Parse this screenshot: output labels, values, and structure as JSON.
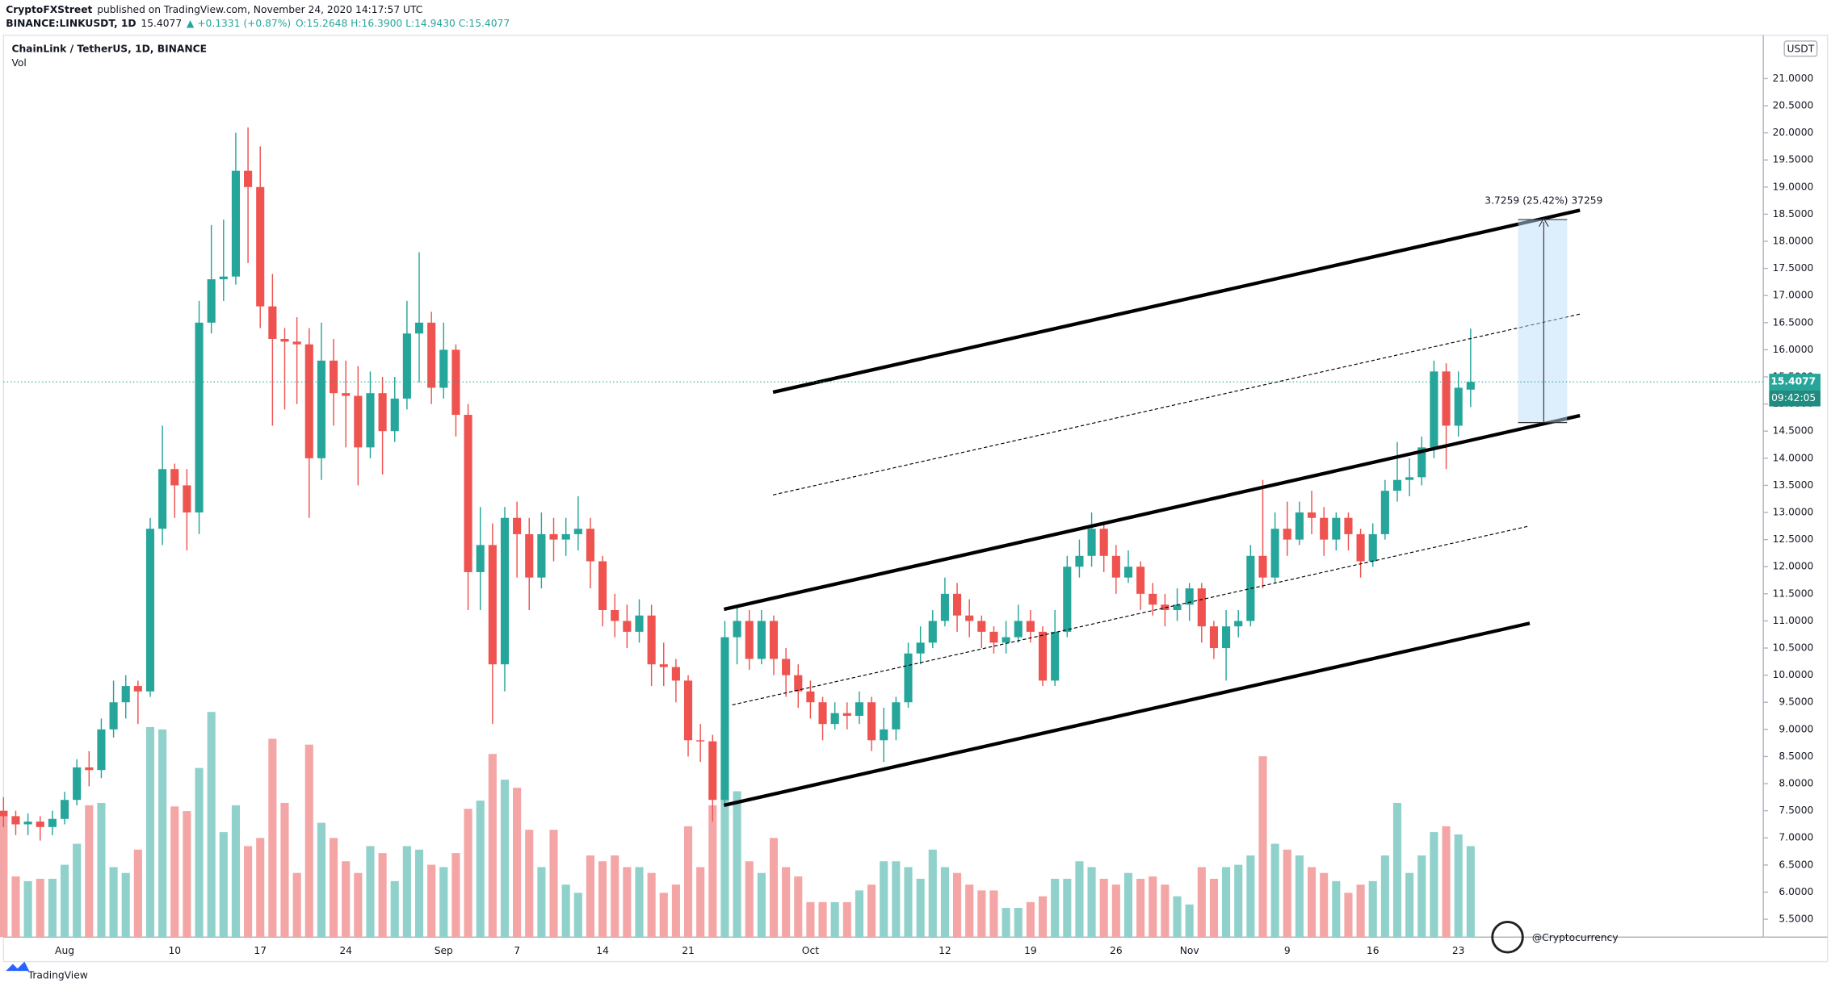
{
  "header": {
    "author": "CryptoFXStreet",
    "published": "published on TradingView.com, November 24, 2020 14:17:57 UTC",
    "symbol": "BINANCE:LINKUSDT, 1D",
    "last": "15.4077",
    "change": "▲ +0.1331 (+0.87%)",
    "ohlc": "O:15.2648 H:16.3900 L:14.9430 C:15.4077"
  },
  "chart_data": {
    "type": "candlestick",
    "title": "ChainLink / TetherUS, 1D, BINANCE",
    "volume_label": "Vol",
    "up_color": "#26a69a",
    "down_color": "#ef5350",
    "volume_up_color": "#91d1cb",
    "volume_down_color": "#f4a6a6",
    "categories": [
      null,
      null,
      null,
      null,
      null,
      "Aug",
      null,
      null,
      null,
      null,
      null,
      null,
      null,
      null,
      "10",
      null,
      null,
      null,
      null,
      null,
      null,
      "17",
      null,
      null,
      null,
      null,
      null,
      null,
      "24",
      null,
      null,
      null,
      null,
      null,
      null,
      null,
      "Sep",
      null,
      null,
      null,
      null,
      null,
      "7",
      null,
      null,
      null,
      null,
      null,
      null,
      "14",
      null,
      null,
      null,
      null,
      null,
      null,
      "21",
      null,
      null,
      null,
      null,
      null,
      null,
      null,
      null,
      null,
      "Oct",
      null,
      null,
      null,
      null,
      null,
      null,
      null,
      null,
      null,
      null,
      "12",
      null,
      null,
      null,
      null,
      null,
      null,
      "19",
      null,
      null,
      null,
      null,
      null,
      null,
      "26",
      null,
      null,
      null,
      null,
      null,
      "Nov",
      null,
      null,
      null,
      null,
      null,
      null,
      null,
      "9",
      null,
      null,
      null,
      null,
      null,
      null,
      "16",
      null,
      null,
      null,
      null,
      null,
      null,
      "23",
      null
    ],
    "open": [
      7.5,
      7.4,
      7.25,
      7.3,
      7.2,
      7.35,
      7.7,
      8.3,
      8.25,
      9.0,
      9.5,
      9.8,
      9.7,
      12.7,
      13.8,
      13.5,
      13.0,
      16.5,
      17.3,
      17.35,
      19.3,
      19.0,
      16.8,
      16.2,
      16.15,
      16.1,
      14.0,
      15.8,
      15.2,
      15.15,
      14.2,
      15.2,
      14.5,
      15.1,
      16.3,
      16.5,
      15.3,
      16.0,
      14.8,
      11.9,
      12.4,
      10.2,
      12.9,
      12.6,
      11.8,
      12.6,
      12.5,
      12.6,
      12.7,
      12.1,
      11.2,
      11.0,
      10.8,
      11.1,
      10.2,
      10.15,
      9.9,
      8.8,
      8.78,
      7.7,
      10.7,
      11.0,
      10.3,
      11.0,
      10.3,
      10.0,
      9.7,
      9.5,
      9.1,
      9.3,
      9.25,
      9.5,
      8.8,
      9.0,
      9.5,
      10.4,
      10.6,
      11.0,
      11.5,
      11.1,
      11.0,
      10.8,
      10.6,
      10.7,
      11.0,
      10.8,
      9.9,
      10.8,
      12.0,
      12.2,
      12.7,
      12.2,
      11.8,
      12.0,
      11.5,
      11.3,
      11.2,
      11.3,
      11.6,
      10.9,
      10.5,
      10.9,
      11.0,
      12.2,
      11.8,
      12.7,
      12.5,
      13.0,
      12.9,
      12.5,
      12.9,
      12.6,
      12.1,
      12.6,
      13.4,
      13.6,
      13.65,
      14.2,
      15.6,
      14.6,
      15.2648
    ],
    "high": [
      7.75,
      7.5,
      7.45,
      7.4,
      7.5,
      7.85,
      8.45,
      8.6,
      9.2,
      9.9,
      10.0,
      9.9,
      12.9,
      14.6,
      13.9,
      13.8,
      16.9,
      18.3,
      18.4,
      20.0,
      20.1,
      19.75,
      17.4,
      16.4,
      16.6,
      16.4,
      16.5,
      16.2,
      15.8,
      15.7,
      15.6,
      15.5,
      15.5,
      16.9,
      17.8,
      16.7,
      16.5,
      16.1,
      15.0,
      13.1,
      12.8,
      13.1,
      13.2,
      12.9,
      13.0,
      12.9,
      12.9,
      13.3,
      12.9,
      12.2,
      11.5,
      11.3,
      11.4,
      11.3,
      10.6,
      10.3,
      10.0,
      9.1,
      8.9,
      11.0,
      11.25,
      11.2,
      11.2,
      11.1,
      10.5,
      10.2,
      9.9,
      9.6,
      9.5,
      9.5,
      9.7,
      9.6,
      9.4,
      9.6,
      10.6,
      10.9,
      11.2,
      11.8,
      11.7,
      11.4,
      11.1,
      10.9,
      11.0,
      11.3,
      11.2,
      10.9,
      11.2,
      12.2,
      12.5,
      13.0,
      12.8,
      12.4,
      12.3,
      12.1,
      11.7,
      11.5,
      11.6,
      11.7,
      11.7,
      11.0,
      11.2,
      11.2,
      12.4,
      13.6,
      13.0,
      13.2,
      13.2,
      13.4,
      13.1,
      13.0,
      13.0,
      12.7,
      12.8,
      13.6,
      14.3,
      14.0,
      14.4,
      15.8,
      15.75,
      15.6,
      16.39
    ],
    "low": [
      7.2,
      7.05,
      7.05,
      6.95,
      7.05,
      7.25,
      7.6,
      7.95,
      8.1,
      8.85,
      9.2,
      9.1,
      9.6,
      12.4,
      12.9,
      12.3,
      12.6,
      16.3,
      16.9,
      17.2,
      17.6,
      16.4,
      14.6,
      14.9,
      15.0,
      12.9,
      13.6,
      14.6,
      14.2,
      13.5,
      14.0,
      13.7,
      14.3,
      14.9,
      15.4,
      15.0,
      15.1,
      14.4,
      11.2,
      11.2,
      9.1,
      9.7,
      11.8,
      11.2,
      11.6,
      12.1,
      12.2,
      12.3,
      11.6,
      10.9,
      10.7,
      10.5,
      10.6,
      9.8,
      9.8,
      9.5,
      8.5,
      8.4,
      7.3,
      7.6,
      10.2,
      10.1,
      10.2,
      10.0,
      9.6,
      9.4,
      9.2,
      8.8,
      9.0,
      9.0,
      9.1,
      8.6,
      8.4,
      8.8,
      9.4,
      10.2,
      10.5,
      10.9,
      10.8,
      10.7,
      10.5,
      10.4,
      10.4,
      10.6,
      10.6,
      9.8,
      9.8,
      10.7,
      11.8,
      12.0,
      11.9,
      11.5,
      11.7,
      11.2,
      11.1,
      10.9,
      11.0,
      11.0,
      10.6,
      10.3,
      9.9,
      10.7,
      10.9,
      11.6,
      11.7,
      12.2,
      12.4,
      12.6,
      12.2,
      12.3,
      12.3,
      11.8,
      12.0,
      12.5,
      13.2,
      13.3,
      13.5,
      14.0,
      13.8,
      14.4,
      14.943
    ],
    "close": [
      7.4,
      7.25,
      7.3,
      7.2,
      7.35,
      7.7,
      8.3,
      8.25,
      9.0,
      9.5,
      9.8,
      9.7,
      12.7,
      13.8,
      13.5,
      13.0,
      16.5,
      17.3,
      17.35,
      19.3,
      19.0,
      16.8,
      16.2,
      16.15,
      16.1,
      14.0,
      15.8,
      15.2,
      15.15,
      14.2,
      15.2,
      14.5,
      15.1,
      16.3,
      16.5,
      15.3,
      16.0,
      14.8,
      11.9,
      12.4,
      10.2,
      12.9,
      12.6,
      11.8,
      12.6,
      12.5,
      12.6,
      12.7,
      12.1,
      11.2,
      11.0,
      10.8,
      11.1,
      10.2,
      10.15,
      9.9,
      8.8,
      8.78,
      7.7,
      10.7,
      11.0,
      10.3,
      11.0,
      10.3,
      10.0,
      9.7,
      9.5,
      9.1,
      9.3,
      9.25,
      9.5,
      8.8,
      9.0,
      9.5,
      10.4,
      10.6,
      11.0,
      11.5,
      11.1,
      11.0,
      10.8,
      10.6,
      10.7,
      11.0,
      10.8,
      9.9,
      10.8,
      12.0,
      12.2,
      12.7,
      12.2,
      11.8,
      12.0,
      11.5,
      11.3,
      11.2,
      11.3,
      11.6,
      10.9,
      10.5,
      10.9,
      11.0,
      12.2,
      11.8,
      12.7,
      12.5,
      13.0,
      12.9,
      12.5,
      12.9,
      12.6,
      12.1,
      12.6,
      13.4,
      13.6,
      13.65,
      14.2,
      15.6,
      14.6,
      15.3,
      15.4077
    ],
    "volume": [
      108,
      52,
      48,
      50,
      50,
      62,
      80,
      113,
      115,
      60,
      55,
      75,
      180,
      178,
      112,
      108,
      145,
      193,
      90,
      113,
      78,
      85,
      170,
      115,
      55,
      165,
      98,
      85,
      65,
      55,
      78,
      72,
      48,
      78,
      75,
      62,
      60,
      72,
      110,
      117,
      157,
      135,
      128,
      92,
      60,
      92,
      45,
      38,
      70,
      65,
      70,
      60,
      60,
      55,
      38,
      45,
      95,
      60,
      113,
      180,
      125,
      65,
      55,
      85,
      60,
      52,
      30,
      30,
      30,
      30,
      40,
      45,
      65,
      65,
      60,
      50,
      75,
      60,
      55,
      45,
      40,
      40,
      25,
      25,
      30,
      35,
      50,
      50,
      65,
      60,
      50,
      45,
      55,
      50,
      52,
      45,
      35,
      28,
      60,
      50,
      60,
      62,
      70,
      155,
      80,
      75,
      70,
      60,
      55,
      48,
      38,
      45,
      48,
      70,
      115,
      55,
      70,
      90,
      95,
      88,
      78
    ],
    "ylim": [
      5.17,
      21.8
    ],
    "yticks": [
      {
        "value": 5.5,
        "label": "5.5000"
      },
      {
        "value": 6,
        "label": "6.0000"
      },
      {
        "value": 6.5,
        "label": "6.5000"
      },
      {
        "value": 7,
        "label": "7.0000"
      },
      {
        "value": 7.5,
        "label": "7.5000"
      },
      {
        "value": 8,
        "label": "8.0000"
      },
      {
        "value": 8.5,
        "label": "8.5000"
      },
      {
        "value": 9,
        "label": "9.0000"
      },
      {
        "value": 9.5,
        "label": "9.5000"
      },
      {
        "value": 10,
        "label": "10.0000"
      },
      {
        "value": 10.5,
        "label": "10.5000"
      },
      {
        "value": 11,
        "label": "11.0000"
      },
      {
        "value": 11.5,
        "label": "11.5000"
      },
      {
        "value": 12,
        "label": "12.0000"
      },
      {
        "value": 12.5,
        "label": "12.5000"
      },
      {
        "value": 13,
        "label": "13.0000"
      },
      {
        "value": 13.5,
        "label": "13.5000"
      },
      {
        "value": 14,
        "label": "14.0000"
      },
      {
        "value": 14.5,
        "label": "14.5000"
      },
      {
        "value": 15,
        "label": "15.0000"
      },
      {
        "value": 15.5,
        "label": "15.5000"
      },
      {
        "value": 16,
        "label": "16.0000"
      },
      {
        "value": 16.5,
        "label": "16.5000"
      },
      {
        "value": 17,
        "label": "17.0000"
      },
      {
        "value": 17.5,
        "label": "17.5000"
      },
      {
        "value": 18,
        "label": "18.0000"
      },
      {
        "value": 18.5,
        "label": "18.5000"
      },
      {
        "value": 19,
        "label": "19.0000"
      },
      {
        "value": 19.5,
        "label": "19.5000"
      },
      {
        "value": 20,
        "label": "20.0000"
      },
      {
        "value": 20.5,
        "label": "20.5000"
      },
      {
        "value": 21,
        "label": "21.0000"
      }
    ],
    "currency": "USDT",
    "last_price_label": "15.4077",
    "countdown": "09:42:05",
    "measure_label": "3.7259 (25.42%) 37259"
  },
  "watermark": "@Cryptocurrency",
  "logo": "TradingView"
}
